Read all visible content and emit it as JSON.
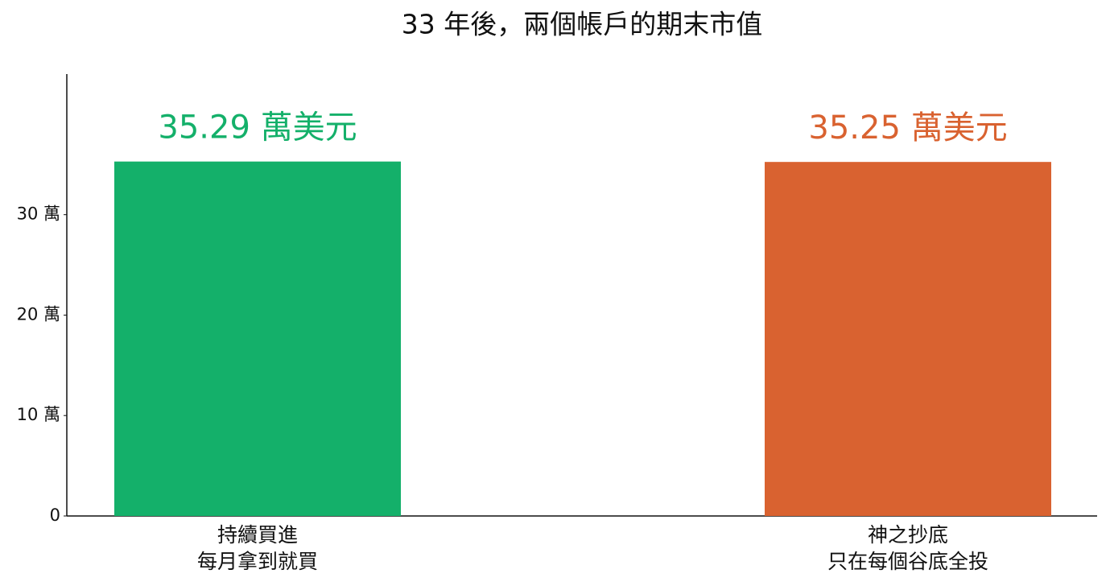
{
  "chart_data": {
    "type": "bar",
    "title": "33 年後，兩個帳戶的期末市值",
    "categories": [
      "持續買進\n每月拿到就買",
      "神之抄底\n只在每個谷底全投"
    ],
    "values": [
      35.29,
      35.25
    ],
    "value_labels": [
      "35.29 萬美元",
      "35.25 萬美元"
    ],
    "colors": [
      "#14b06a",
      "#d96230"
    ],
    "ylim": [
      0,
      44
    ],
    "yticks": [
      0,
      {
        "value": 10,
        "label": "10 萬"
      },
      {
        "value": 20,
        "label": "20 萬"
      },
      {
        "value": 30,
        "label": "30 萬"
      }
    ],
    "grid": false
  }
}
